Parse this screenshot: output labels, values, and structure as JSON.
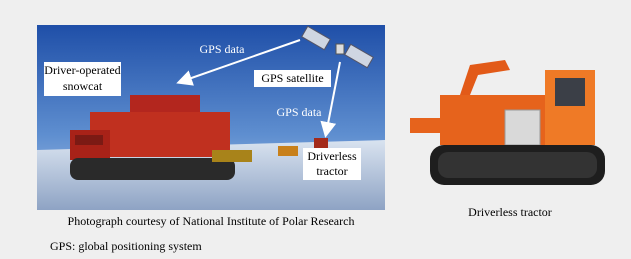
{
  "photo": {
    "labels": {
      "gps_data_1": "GPS data",
      "gps_data_2": "GPS data",
      "snowcat": [
        "Driver-operated",
        "snowcat"
      ],
      "satellite": "GPS satellite",
      "tractor": [
        "Driverless",
        "tractor"
      ]
    },
    "caption": "Photograph courtesy of National Institute of Polar Research"
  },
  "side_image": {
    "caption": "Driverless tractor"
  },
  "footnote": "GPS: global positioning system"
}
